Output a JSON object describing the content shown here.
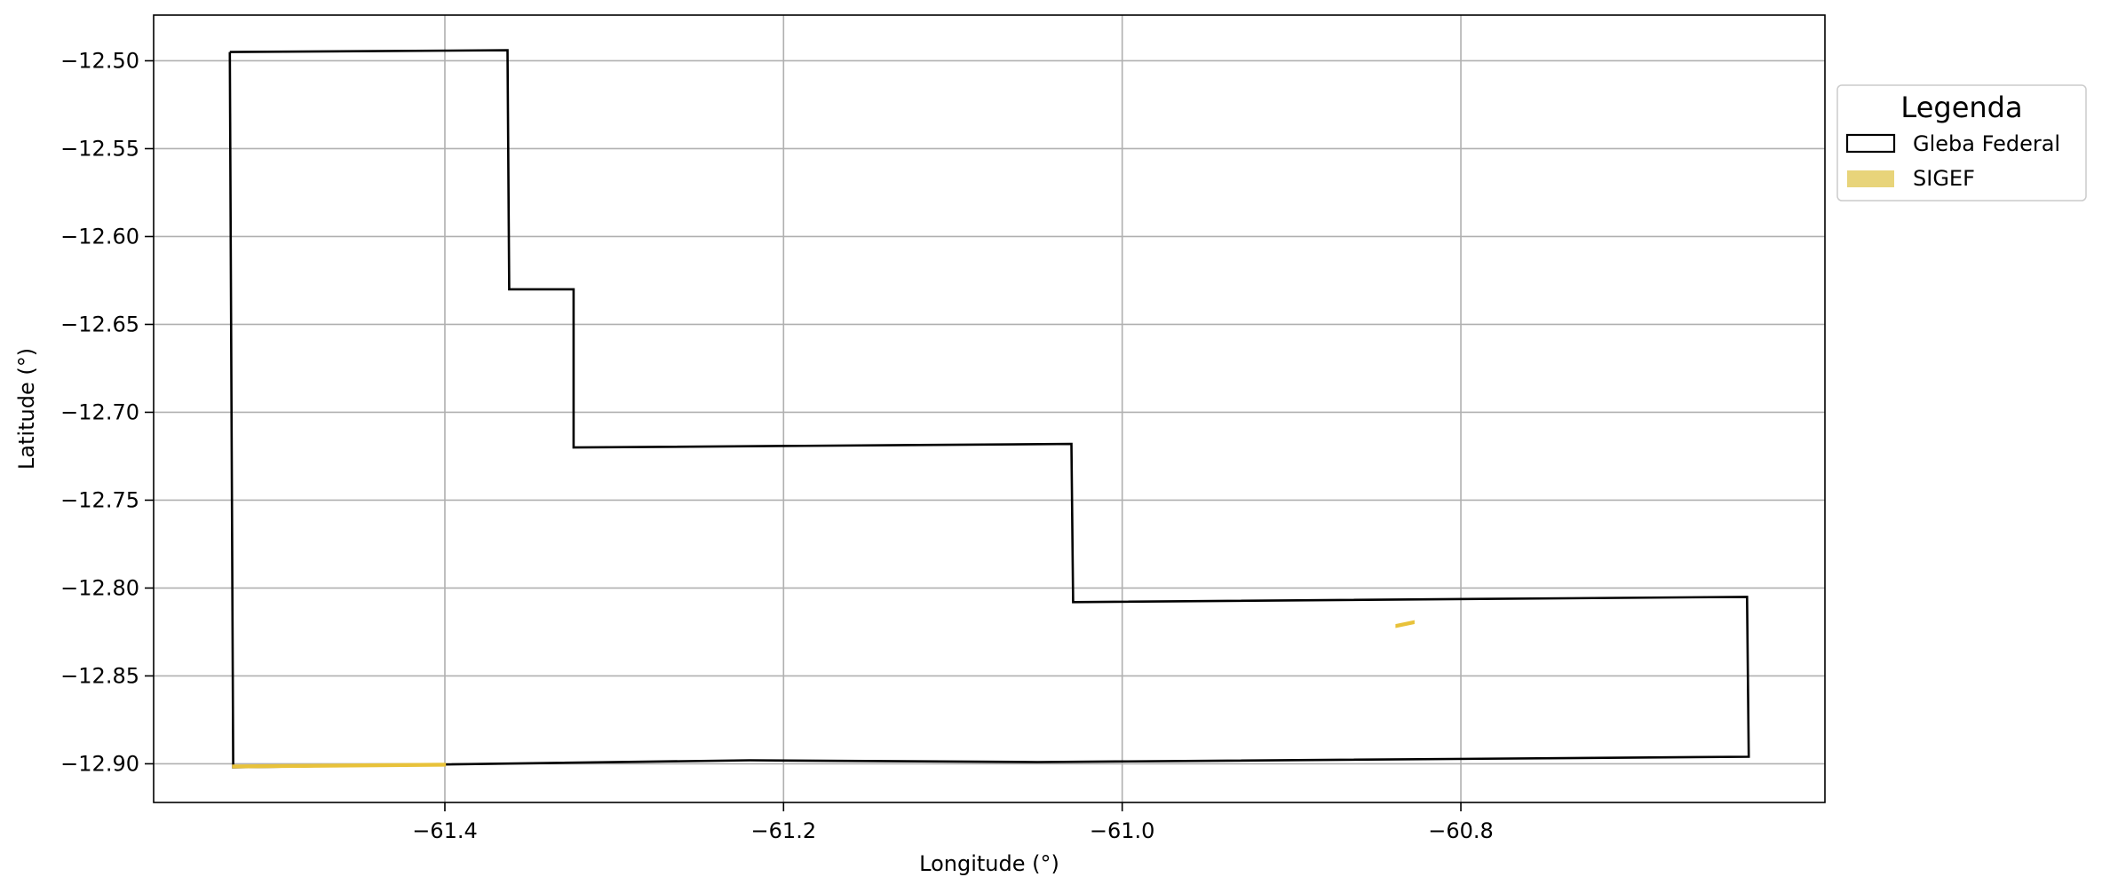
{
  "chart_data": {
    "type": "map",
    "title": "",
    "xlabel": "Longitude (°)",
    "ylabel": "Latitude (°)",
    "xlim": [
      -61.572,
      -60.585
    ],
    "ylim": [
      -12.922,
      -12.474
    ],
    "grid": true,
    "x_ticks": [
      -61.4,
      -61.2,
      -61.0,
      -60.8
    ],
    "x_tick_labels": [
      "−61.4",
      "−61.2",
      "−61.0",
      "−60.8"
    ],
    "y_ticks": [
      -12.5,
      -12.55,
      -12.6,
      -12.65,
      -12.7,
      -12.75,
      -12.8,
      -12.85,
      -12.9
    ],
    "y_tick_labels": [
      "−12.50",
      "−12.55",
      "−12.60",
      "−12.65",
      "−12.70",
      "−12.75",
      "−12.80",
      "−12.85",
      "−12.90"
    ],
    "legend": {
      "title": "Legenda",
      "placement": "outside-top-right",
      "entries": [
        {
          "label": "Gleba Federal",
          "style": "outline",
          "color": "#000000"
        },
        {
          "label": "SIGEF",
          "style": "fill",
          "color": "#e8d47a"
        }
      ]
    },
    "series": [
      {
        "name": "Gleba Federal",
        "kind": "polygon",
        "stroke": "#000000",
        "points": [
          [
            -61.527,
            -12.495
          ],
          [
            -61.363,
            -12.494
          ],
          [
            -61.362,
            -12.63
          ],
          [
            -61.324,
            -12.63
          ],
          [
            -61.324,
            -12.72
          ],
          [
            -61.03,
            -12.718
          ],
          [
            -61.029,
            -12.808
          ],
          [
            -60.631,
            -12.805
          ],
          [
            -60.63,
            -12.896
          ],
          [
            -61.05,
            -12.899
          ],
          [
            -61.22,
            -12.898
          ],
          [
            -61.525,
            -12.902
          ],
          [
            -61.527,
            -12.495
          ]
        ]
      },
      {
        "name": "SIGEF",
        "kind": "polygons",
        "fill": "#e8d47a",
        "stroke": "#e8c23a",
        "features": [
          [
            [
              -60.838,
              -12.821
            ],
            [
              -60.828,
              -12.819
            ],
            [
              -60.828,
              -12.82
            ],
            [
              -60.838,
              -12.822
            ]
          ],
          [
            [
              -61.525,
              -12.901
            ],
            [
              -61.4,
              -12.9
            ],
            [
              -61.4,
              -12.901
            ],
            [
              -61.525,
              -12.902
            ]
          ]
        ]
      }
    ]
  }
}
